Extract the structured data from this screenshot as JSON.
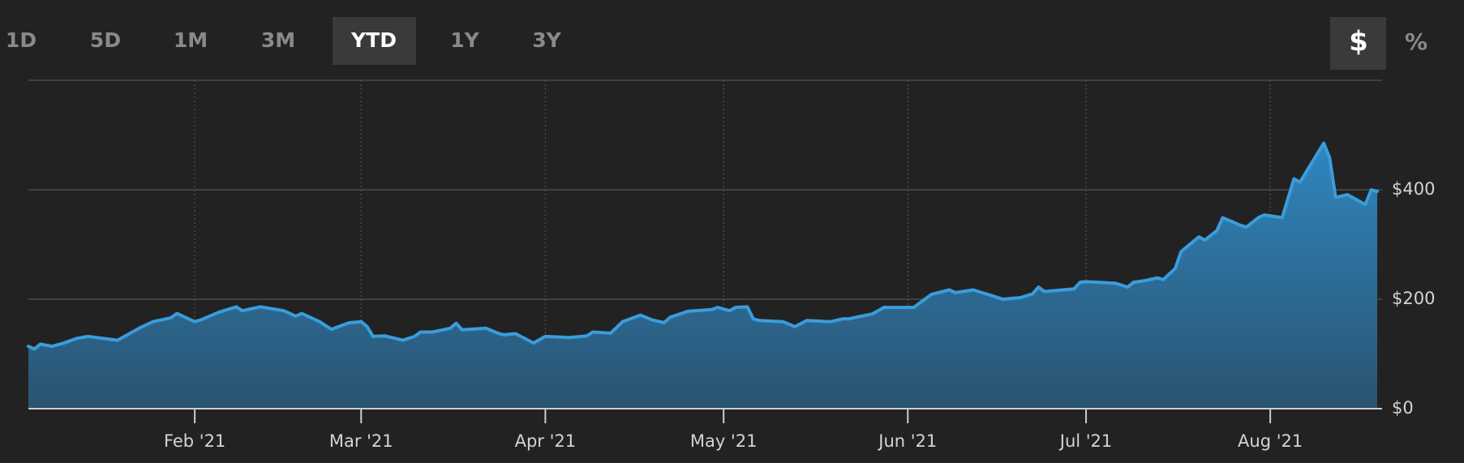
{
  "ui": {
    "ranges": [
      {
        "label": "1D"
      },
      {
        "label": "5D"
      },
      {
        "label": "1M"
      },
      {
        "label": "3M"
      },
      {
        "label": "YTD",
        "selected": true
      },
      {
        "label": "1Y"
      },
      {
        "label": "3Y"
      }
    ],
    "units": [
      {
        "label": "$",
        "selected": true
      },
      {
        "label": "%"
      }
    ]
  },
  "chart_data": {
    "type": "area",
    "color": "#3a9cdc",
    "x": [
      4,
      5,
      6,
      8,
      10,
      12,
      14,
      19,
      21,
      23,
      25,
      28,
      29,
      32,
      33,
      36,
      39,
      40,
      43,
      47,
      49,
      50,
      53,
      55,
      58,
      60,
      61,
      62,
      64,
      67,
      69,
      70,
      72,
      75,
      76,
      77,
      81,
      83,
      84,
      86,
      89,
      91,
      95,
      98,
      99,
      102,
      104,
      107,
      109,
      111,
      112,
      115,
      119,
      120,
      122,
      123,
      125,
      126,
      127,
      131,
      133,
      135,
      139,
      141,
      142,
      146,
      148,
      153,
      154,
      156,
      159,
      160,
      163,
      166,
      168,
      171,
      173,
      174,
      175,
      180,
      181,
      182,
      187,
      189,
      190,
      192,
      194,
      195,
      197,
      198,
      201,
      202,
      204,
      205,
      208,
      209,
      211,
      212,
      215,
      217,
      218,
      222,
      223,
      224,
      226,
      227,
      229,
      230,
      231
    ],
    "values": [
      114,
      109,
      118,
      114,
      120,
      128,
      132,
      125,
      137,
      149,
      159,
      166,
      174,
      159,
      162,
      176,
      186,
      179,
      186,
      179,
      169,
      174,
      159,
      145,
      157,
      159,
      150,
      132,
      133,
      125,
      132,
      140,
      140,
      147,
      156,
      144,
      147,
      138,
      135,
      137,
      120,
      132,
      130,
      133,
      140,
      138,
      159,
      171,
      162,
      157,
      167,
      178,
      181,
      185,
      179,
      185,
      186,
      164,
      161,
      159,
      150,
      161,
      159,
      164,
      164,
      173,
      185,
      185,
      193,
      209,
      217,
      212,
      217,
      207,
      200,
      203,
      210,
      222,
      214,
      219,
      231,
      232,
      229,
      222,
      231,
      234,
      239,
      236,
      256,
      287,
      314,
      308,
      325,
      349,
      335,
      332,
      349,
      354,
      349,
      420,
      414,
      485,
      458,
      386,
      391,
      385,
      373,
      400,
      397
    ],
    "xlim": [
      4,
      231
    ],
    "xticks": [
      {
        "value": 32,
        "label": "Feb '21"
      },
      {
        "value": 60,
        "label": "Mar '21"
      },
      {
        "value": 91,
        "label": "Apr '21"
      },
      {
        "value": 121,
        "label": "May '21"
      },
      {
        "value": 152,
        "label": "Jun '21"
      },
      {
        "value": 182,
        "label": "Jul '21"
      },
      {
        "value": 213,
        "label": "Aug '21"
      }
    ],
    "ylim": [
      0,
      600
    ],
    "yticks": [
      {
        "value": 0,
        "label": "$0"
      },
      {
        "value": 200,
        "label": "$200"
      },
      {
        "value": 400,
        "label": "$400"
      }
    ],
    "grid": true
  }
}
